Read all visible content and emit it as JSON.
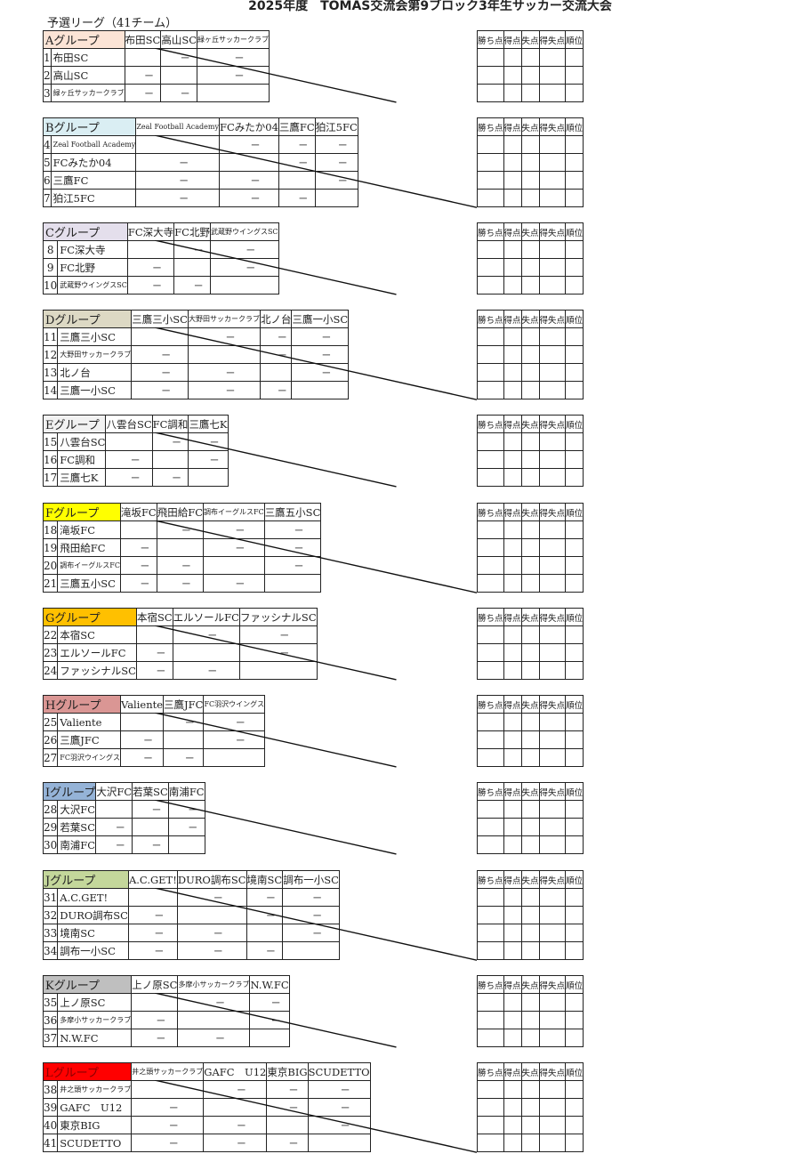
{
  "title": "2025年度　TOMAS交流会第9ブロック3年生サッカー交流大会",
  "subtitle": "予選リーグ（41チーム）",
  "empty_mark": "－",
  "stats_headers": [
    "勝ち点",
    "得点",
    "失点",
    "得失点",
    "順位"
  ],
  "groups": [
    {
      "label": "Aグループ",
      "color": "#fce4d6",
      "teams": [
        [
          1,
          "布田SC"
        ],
        [
          2,
          "高山SC"
        ],
        [
          3,
          "緑ヶ丘サッカークラブ"
        ]
      ]
    },
    {
      "label": "Bグループ",
      "color": "#daeef3",
      "teams": [
        [
          4,
          "Zeal Football Academy"
        ],
        [
          5,
          "FCみたか04"
        ],
        [
          6,
          "三鷹FC"
        ],
        [
          7,
          "狛江5FC"
        ]
      ]
    },
    {
      "label": "Cグループ",
      "color": "#e4dfec",
      "teams": [
        [
          8,
          "FC深大寺"
        ],
        [
          9,
          "FC北野"
        ],
        [
          10,
          "武蔵野ウイングスSC"
        ]
      ]
    },
    {
      "label": "Dグループ",
      "color": "#ddd9c4",
      "teams": [
        [
          11,
          "三鷹三小SC"
        ],
        [
          12,
          "大野田サッカークラブ"
        ],
        [
          13,
          "北ノ台"
        ],
        [
          14,
          "三鷹一小SC"
        ]
      ]
    },
    {
      "label": "Eグループ",
      "color": "#f2f2f2",
      "teams": [
        [
          15,
          "八雲台SC"
        ],
        [
          16,
          "FC調和"
        ],
        [
          17,
          "三鷹七K"
        ]
      ]
    },
    {
      "label": "Fグループ",
      "color": "#ffff00",
      "teams": [
        [
          18,
          "滝坂FC"
        ],
        [
          19,
          "飛田給FC"
        ],
        [
          20,
          "調布イーグルスFC"
        ],
        [
          21,
          "三鷹五小SC"
        ]
      ]
    },
    {
      "label": "Gグループ",
      "color": "#ffc000",
      "teams": [
        [
          22,
          "本宿SC"
        ],
        [
          23,
          "エルソールFC"
        ],
        [
          24,
          "ファッシナルSC"
        ]
      ]
    },
    {
      "label": "Hグループ",
      "color": "#da9694",
      "teams": [
        [
          25,
          "Valiente"
        ],
        [
          26,
          "三鷹JFC"
        ],
        [
          27,
          "FC羽沢ウイングス"
        ]
      ]
    },
    {
      "label": "Iグループ",
      "color": "#95b3d7",
      "teams": [
        [
          28,
          "大沢FC"
        ],
        [
          29,
          "若葉SC"
        ],
        [
          30,
          "南浦FC"
        ]
      ]
    },
    {
      "label": "Jグループ",
      "color": "#c4d79b",
      "teams": [
        [
          31,
          "A.C.GET!"
        ],
        [
          32,
          "DURO調布SC"
        ],
        [
          33,
          "境南SC"
        ],
        [
          34,
          "調布一小SC"
        ]
      ]
    },
    {
      "label": "Kグループ",
      "color": "#bfbfbf",
      "teams": [
        [
          35,
          "上ノ原SC"
        ],
        [
          36,
          "多摩小サッカークラブ"
        ],
        [
          37,
          "N.W.FC"
        ]
      ]
    },
    {
      "label": "Lグループ",
      "color": "#ff0000",
      "teams": [
        [
          38,
          "井之頭サッカークラブ"
        ],
        [
          39,
          "GAFC　U12"
        ],
        [
          40,
          "東京BIG"
        ],
        [
          41,
          "SCUDETTO"
        ]
      ]
    }
  ]
}
